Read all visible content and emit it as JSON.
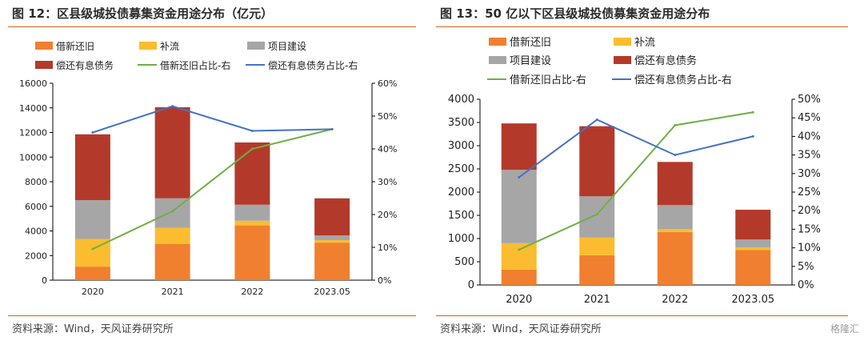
{
  "charts": [
    {
      "title": "图 12：区县级城投债募集资金用途分布（亿元）",
      "source": "资料来源：Wind，天风证券研究所",
      "chart_data": {
        "type": "bar",
        "stacked": true,
        "categories": [
          "2020",
          "2021",
          "2022",
          "2023.05"
        ],
        "series": [
          {
            "name": "借新还旧",
            "kind": "bar",
            "color": "#f08030",
            "values": [
              1100,
              2950,
              4450,
              3050
            ]
          },
          {
            "name": "补流",
            "kind": "bar",
            "color": "#fbbd2f",
            "values": [
              2250,
              1300,
              380,
              200
            ]
          },
          {
            "name": "项目建设",
            "kind": "bar",
            "color": "#a6a6a6",
            "values": [
              3150,
              2400,
              1300,
              380
            ]
          },
          {
            "name": "偿还有息债务",
            "kind": "bar",
            "color": "#b33a2a",
            "values": [
              5350,
              7400,
              5060,
              3020
            ]
          },
          {
            "name": "借新还旧占比-右",
            "kind": "line",
            "axis": "right",
            "color": "#6fb043",
            "values": [
              0.095,
              0.21,
              0.4,
              0.46
            ]
          },
          {
            "name": "偿还有息债务占比-右",
            "kind": "line",
            "axis": "right",
            "color": "#4472c4",
            "values": [
              0.45,
              0.53,
              0.455,
              0.46
            ]
          }
        ],
        "y_left": {
          "min": 0,
          "max": 16000,
          "ticks": [
            "0",
            "2000",
            "4000",
            "6000",
            "8000",
            "10000",
            "12000",
            "14000",
            "16000"
          ]
        },
        "y_right": {
          "min": 0,
          "max": 0.6,
          "ticks": [
            "0%",
            "10%",
            "20%",
            "30%",
            "40%",
            "50%",
            "60%"
          ]
        },
        "legend": "top"
      }
    },
    {
      "title": "图 13：50 亿以下区县级城投债募集资金用途分布",
      "source": "资料来源：Wind，天风证券研究所",
      "chart_data": {
        "type": "bar",
        "stacked": true,
        "categories": [
          "2020",
          "2021",
          "2022",
          "2023.05"
        ],
        "series": [
          {
            "name": "借新还旧",
            "kind": "bar",
            "color": "#f08030",
            "values": [
              330,
              640,
              1140,
              750
            ]
          },
          {
            "name": "补流",
            "kind": "bar",
            "color": "#fbbd2f",
            "values": [
              570,
              380,
              60,
              60
            ]
          },
          {
            "name": "项目建设",
            "kind": "bar",
            "color": "#a6a6a6",
            "values": [
              1580,
              890,
              520,
              170
            ]
          },
          {
            "name": "偿还有息债务",
            "kind": "bar",
            "color": "#b33a2a",
            "values": [
              1000,
              1510,
              930,
              640
            ]
          },
          {
            "name": "借新还旧占比-右",
            "kind": "line",
            "axis": "right",
            "color": "#6fb043",
            "values": [
              0.095,
              0.19,
              0.43,
              0.465
            ]
          },
          {
            "name": "偿还有息债务占比-右",
            "kind": "line",
            "axis": "right",
            "color": "#4472c4",
            "values": [
              0.29,
              0.445,
              0.35,
              0.4
            ]
          }
        ],
        "y_left": {
          "min": 0,
          "max": 4000,
          "ticks": [
            "0",
            "500",
            "1000",
            "1500",
            "2000",
            "2500",
            "3000",
            "3500",
            "4000"
          ]
        },
        "y_right": {
          "min": 0,
          "max": 0.5,
          "ticks": [
            "0%",
            "5%",
            "10%",
            "15%",
            "20%",
            "25%",
            "30%",
            "35%",
            "40%",
            "45%",
            "50%"
          ]
        },
        "legend": "top"
      }
    }
  ],
  "watermark": "格隆汇"
}
